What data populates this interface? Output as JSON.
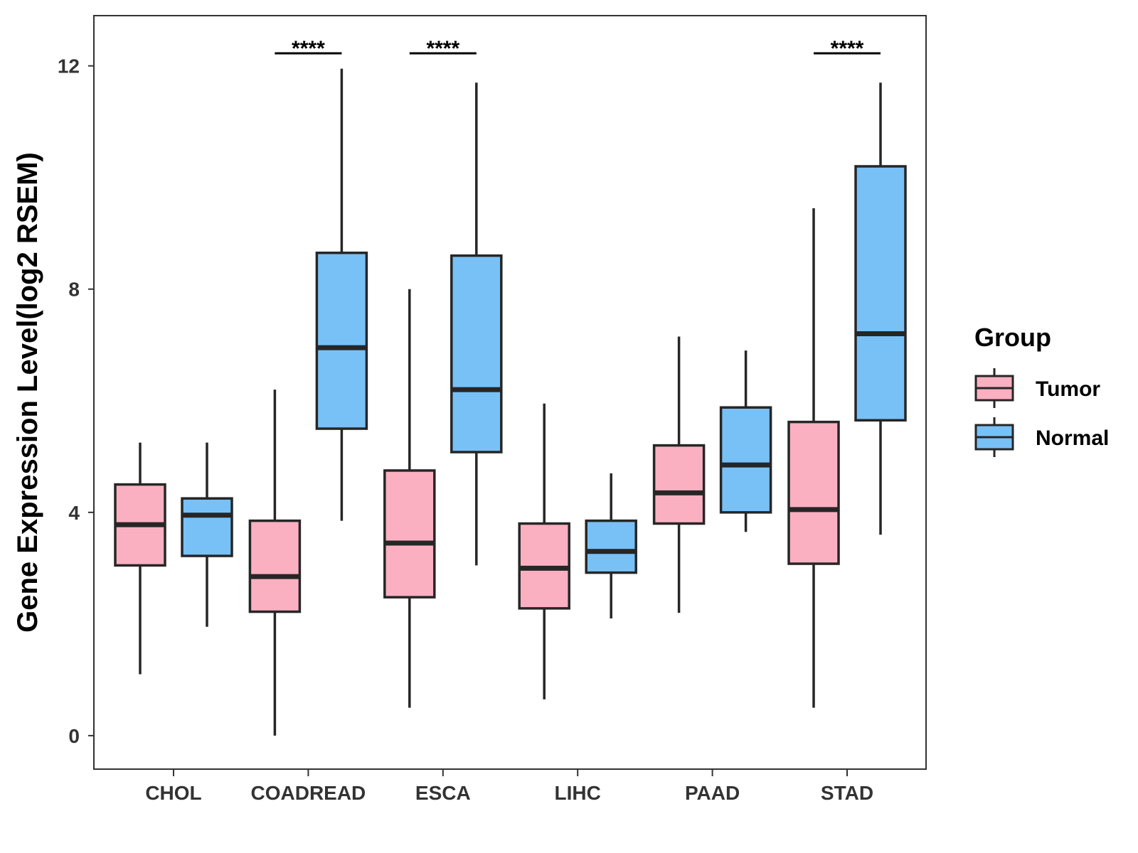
{
  "chart_data": {
    "type": "boxplot",
    "title": "",
    "xlabel": "",
    "ylabel": "Gene Expression Level(log2 RSEM)",
    "ylim": [
      -0.6,
      12.9
    ],
    "yticks": [
      0,
      4,
      8,
      12
    ],
    "grid": false,
    "legend_position": "right",
    "legend_title": "Group",
    "categories": [
      "CHOL",
      "COADREAD",
      "ESCA",
      "LIHC",
      "PAAD",
      "STAD"
    ],
    "series": [
      {
        "name": "Tumor",
        "color": "#FBB0C2",
        "boxes": [
          {
            "min": 1.1,
            "q1": 3.05,
            "median": 3.78,
            "q3": 4.5,
            "max": 5.25
          },
          {
            "min": 0.0,
            "q1": 2.22,
            "median": 2.85,
            "q3": 3.85,
            "max": 6.2
          },
          {
            "min": 0.5,
            "q1": 2.48,
            "median": 3.45,
            "q3": 4.75,
            "max": 8.0
          },
          {
            "min": 0.65,
            "q1": 2.28,
            "median": 3.0,
            "q3": 3.8,
            "max": 5.95
          },
          {
            "min": 2.2,
            "q1": 3.8,
            "median": 4.35,
            "q3": 5.2,
            "max": 7.15
          },
          {
            "min": 0.5,
            "q1": 3.08,
            "median": 4.05,
            "q3": 5.62,
            "max": 9.45
          }
        ]
      },
      {
        "name": "Normal",
        "color": "#78C1F7",
        "boxes": [
          {
            "min": 1.95,
            "q1": 3.22,
            "median": 3.95,
            "q3": 4.25,
            "max": 5.25
          },
          {
            "min": 3.85,
            "q1": 5.5,
            "median": 6.95,
            "q3": 8.65,
            "max": 11.95
          },
          {
            "min": 3.05,
            "q1": 5.08,
            "median": 6.2,
            "q3": 8.6,
            "max": 11.7
          },
          {
            "min": 2.1,
            "q1": 2.92,
            "median": 3.3,
            "q3": 3.85,
            "max": 4.7
          },
          {
            "min": 3.65,
            "q1": 4.0,
            "median": 4.85,
            "q3": 5.88,
            "max": 6.9
          },
          {
            "min": 3.6,
            "q1": 5.65,
            "median": 7.2,
            "q3": 10.2,
            "max": 11.7
          }
        ]
      }
    ],
    "significance": [
      {
        "category": "COADREAD",
        "label": "****"
      },
      {
        "category": "ESCA",
        "label": "****"
      },
      {
        "category": "STAD",
        "label": "****"
      }
    ]
  }
}
